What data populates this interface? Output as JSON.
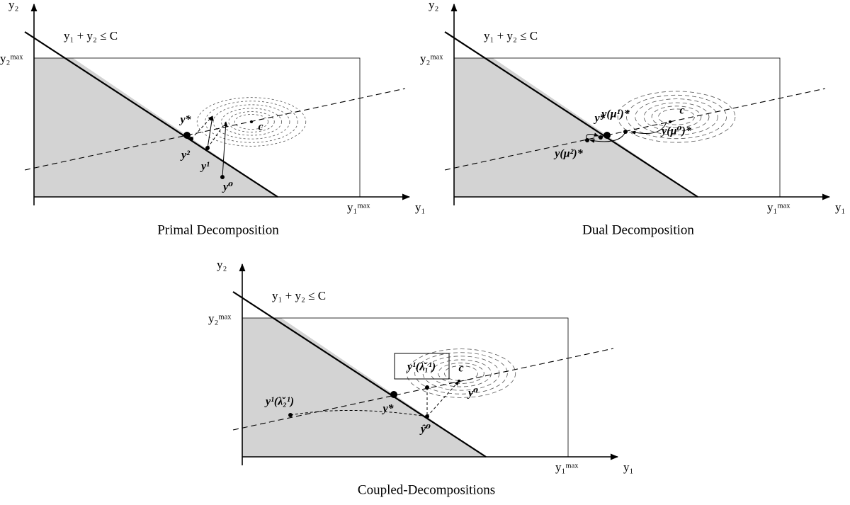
{
  "panels": [
    {
      "caption": "Primal Decomposition",
      "y_axis": "y₂",
      "x_axis": "y₁",
      "y_max": "y₂ᵐᵃˣ",
      "x_max": "y₁ᵐᵃˣ",
      "constraint": "y₁ + y₂ ≤ C",
      "points": [
        "y*",
        "y²",
        "y¹",
        "y⁰",
        "c"
      ]
    },
    {
      "caption": "Dual Decomposition",
      "y_axis": "y₂",
      "x_axis": "y₁",
      "y_max": "y₂ᵐᵃˣ",
      "x_max": "y₁ᵐᵃˣ",
      "constraint": "y₁ + y₂ ≤ C",
      "points": [
        "y*",
        "y(μ¹)*",
        "c",
        "y(μ⁰)*",
        "y(μ²)*"
      ]
    },
    {
      "caption": "Coupled-Decompositions",
      "y_axis": "y₂",
      "x_axis": "y₁",
      "y_max": "y₂ᵐᵃˣ",
      "x_max": "y₁ᵐᵃˣ",
      "constraint": "y₁ + y₂ ≤ C",
      "points": [
        "y*",
        "y¹(λ̌₁¹)",
        "c",
        "y⁰",
        "ŷ⁰",
        "y¹(λ̌₂¹)"
      ]
    }
  ]
}
